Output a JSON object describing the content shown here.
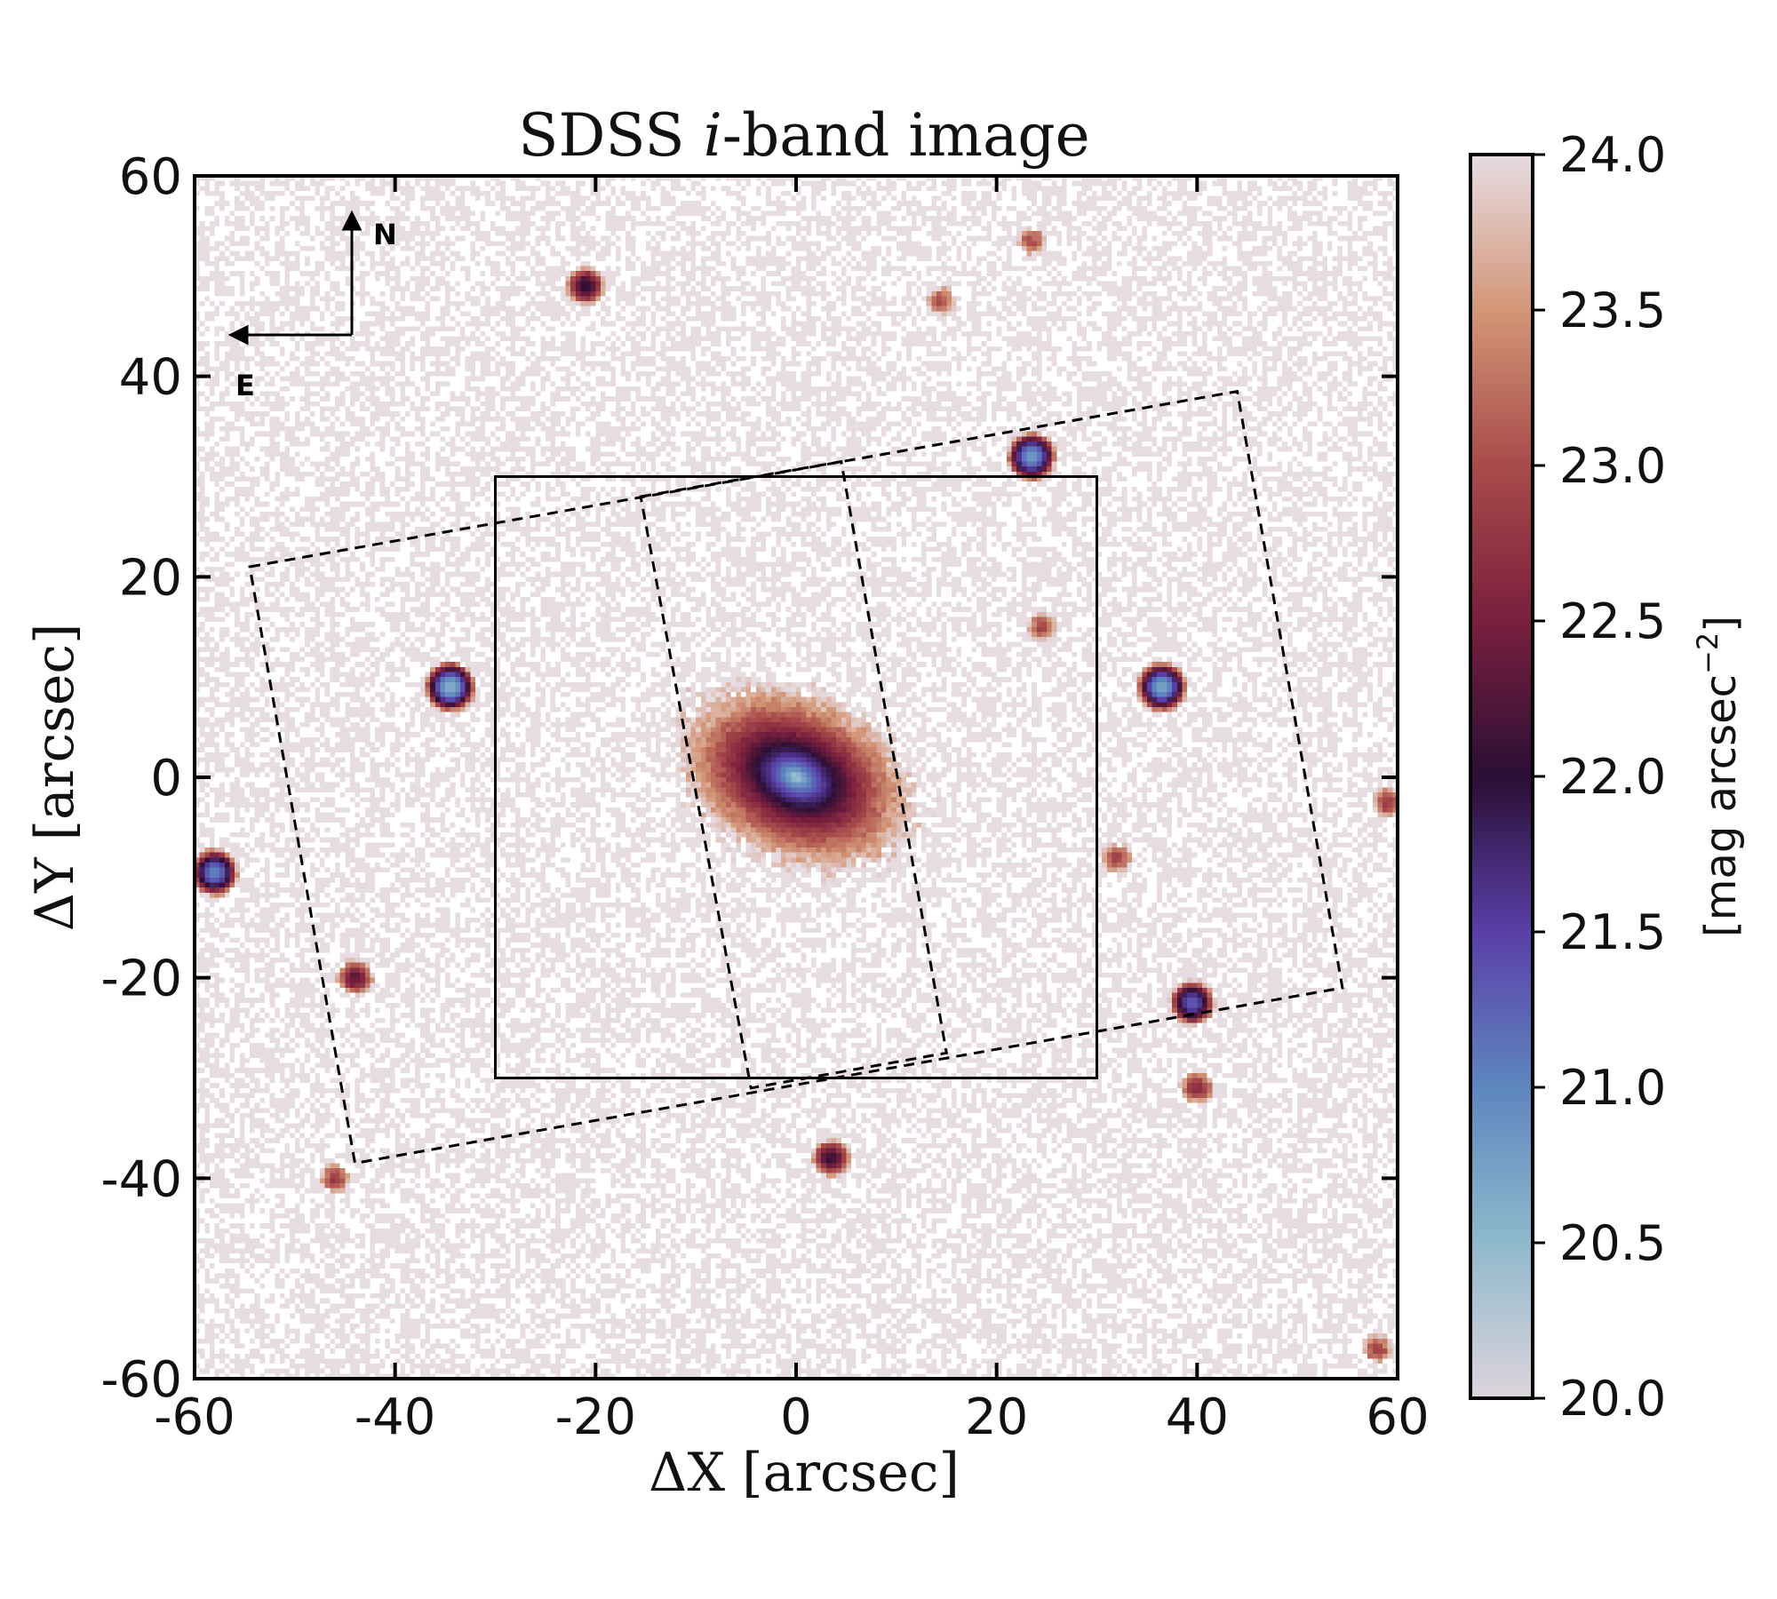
{
  "chart_data": {
    "type": "image",
    "title_prefix": "SDSS ",
    "title_italic": "i",
    "title_suffix": "-band image",
    "xlabel": "ΔX [arcsec]",
    "ylabel": "ΔY [arcsec]",
    "xlim": [
      -60,
      60
    ],
    "ylim": [
      -60,
      60
    ],
    "xticks": [
      -60,
      -40,
      -20,
      0,
      20,
      40,
      60
    ],
    "yticks": [
      -60,
      -40,
      -20,
      0,
      20,
      40,
      60
    ],
    "compass": {
      "north": "N",
      "east": "E"
    },
    "colorbar": {
      "label": "[mag arcsec",
      "label_exponent": "−2",
      "label_close": "]",
      "range": [
        20.0,
        24.0
      ],
      "ticks": [
        "20.0",
        "20.5",
        "21.0",
        "21.5",
        "22.0",
        "22.5",
        "23.0",
        "23.5",
        "24.0"
      ],
      "stops": [
        "#ddd4dc",
        "#8fb9cc",
        "#5e86bf",
        "#5a3fa8",
        "#2b0f35",
        "#7a1f3e",
        "#a84b4a",
        "#d39677",
        "#e6dce2"
      ]
    },
    "galaxy": {
      "center": [
        0,
        0
      ],
      "major_axis_deg": -25,
      "peak_mag": 20.0
    },
    "point_sources": [
      {
        "x": -21,
        "y": 49,
        "mag": 22.0
      },
      {
        "x": 23.5,
        "y": 32,
        "mag": 20.8
      },
      {
        "x": -34.5,
        "y": 9,
        "mag": 20.6
      },
      {
        "x": 36.5,
        "y": 9,
        "mag": 20.7
      },
      {
        "x": -58,
        "y": -9.5,
        "mag": 21.0
      },
      {
        "x": -44,
        "y": -20,
        "mag": 22.3
      },
      {
        "x": 39.5,
        "y": -22.5,
        "mag": 21.3
      },
      {
        "x": 3.5,
        "y": -38,
        "mag": 22.1
      },
      {
        "x": 40,
        "y": -31,
        "mag": 22.6
      },
      {
        "x": -46,
        "y": -40,
        "mag": 22.8
      },
      {
        "x": 59,
        "y": -2.5,
        "mag": 22.8
      },
      {
        "x": 24.5,
        "y": 15,
        "mag": 22.9
      },
      {
        "x": 32,
        "y": -8,
        "mag": 22.9
      },
      {
        "x": 58,
        "y": -57,
        "mag": 22.9
      },
      {
        "x": 23.5,
        "y": 53.5,
        "mag": 23.0
      },
      {
        "x": 14.5,
        "y": 47.5,
        "mag": 23.0
      }
    ],
    "overlays": [
      {
        "name": "solid-square-field",
        "style": "solid",
        "corners": [
          [
            -30,
            30
          ],
          [
            30,
            30
          ],
          [
            30,
            -30
          ],
          [
            -30,
            -30
          ]
        ]
      },
      {
        "name": "dashed-wide-field",
        "style": "dashed",
        "corners": [
          [
            -54.5,
            21
          ],
          [
            44,
            38.5
          ],
          [
            54.5,
            -21
          ],
          [
            -44,
            -38.5
          ]
        ]
      },
      {
        "name": "dashed-inner-strip",
        "style": "dashed",
        "corners": [
          [
            -15.5,
            28
          ],
          [
            4.5,
            31.5
          ],
          [
            15,
            -27.5
          ],
          [
            -4.5,
            -31
          ]
        ]
      }
    ]
  }
}
